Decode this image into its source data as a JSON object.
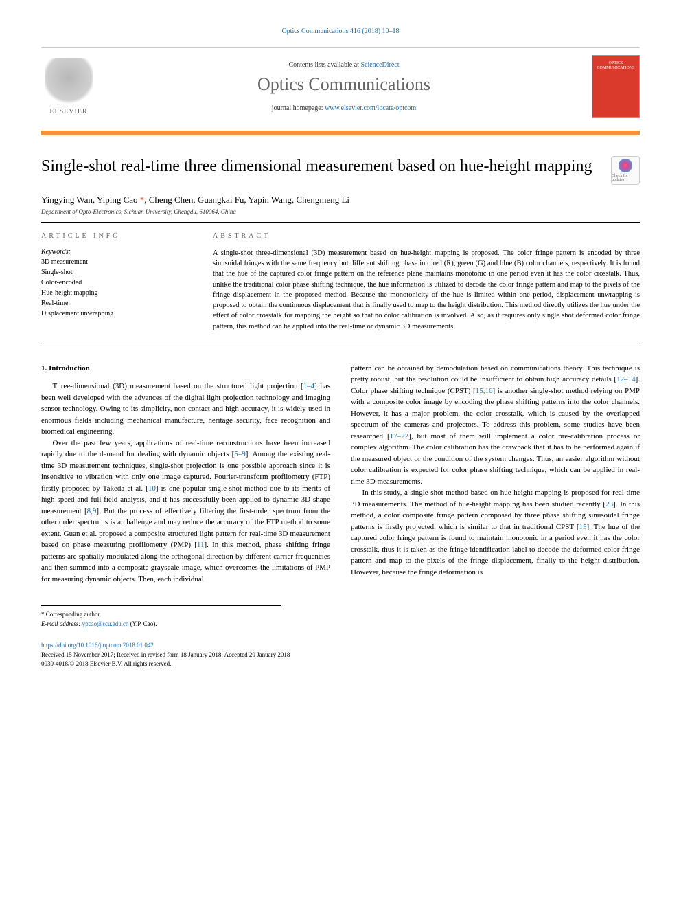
{
  "header": {
    "citation": "Optics Communications 416 (2018) 10–18",
    "contents_prefix": "Contents lists available at ",
    "contents_link": "ScienceDirect",
    "journal_name": "Optics Communications",
    "homepage_prefix": "journal homepage: ",
    "homepage_link": "www.elsevier.com/locate/optcom",
    "publisher": "ELSEVIER",
    "cover_line1": "OPTICS",
    "cover_line2": "COMMUNICATIONS"
  },
  "badge": {
    "label": "Check for updates"
  },
  "article": {
    "title": "Single-shot real-time three dimensional measurement based on hue-height mapping",
    "authors": "Yingying Wan, Yiping Cao *, Cheng Chen, Guangkai Fu, Yapin Wang, Chengmeng Li",
    "affiliation": "Department of Opto-Electronics, Sichuan University, Chengdu, 610064, China"
  },
  "labels": {
    "article_info": "ARTICLE INFO",
    "abstract": "ABSTRACT",
    "keywords": "Keywords:"
  },
  "keywords": [
    "3D measurement",
    "Single-shot",
    "Color-encoded",
    "Hue-height mapping",
    "Real-time",
    "Displacement unwrapping"
  ],
  "abstract": "A single-shot three-dimensional (3D) measurement based on hue-height mapping is proposed. The color fringe pattern is encoded by three sinusoidal fringes with the same frequency but different shifting phase into red (R), green (G) and blue (B) color channels, respectively. It is found that the hue of the captured color fringe pattern on the reference plane maintains monotonic in one period even it has the color crosstalk. Thus, unlike the traditional color phase shifting technique, the hue information is utilized to decode the color fringe pattern and map to the pixels of the fringe displacement in the proposed method. Because the monotonicity of the hue is limited within one period, displacement unwrapping is proposed to obtain the continuous displacement that is finally used to map to the height distribution. This method directly utilizes the hue under the effect of color crosstalk for mapping the height so that no color calibration is involved. Also, as it requires only single shot deformed color fringe pattern, this method can be applied into the real-time or dynamic 3D measurements.",
  "sections": {
    "intro_heading": "1. Introduction"
  },
  "body": {
    "col1_p1": "Three-dimensional (3D) measurement based on the structured light projection [1–4] has been well developed with the advances of the digital light projection technology and imaging sensor technology. Owing to its simplicity, non-contact and high accuracy, it is widely used in enormous fields including mechanical manufacture, heritage security, face recognition and biomedical engineering.",
    "col1_p2": "Over the past few years, applications of real-time reconstructions have been increased rapidly due to the demand for dealing with dynamic objects [5–9]. Among the existing real-time 3D measurement techniques, single-shot projection is one possible approach since it is insensitive to vibration with only one image captured. Fourier-transform profilometry (FTP) firstly proposed by Takeda et al. [10] is one popular single-shot method due to its merits of high speed and full-field analysis, and it has successfully been applied to dynamic 3D shape measurement [8,9]. But the process of effectively filtering the first-order spectrum from the other order spectrums is a challenge and may reduce the accuracy of the FTP method to some extent. Guan et al. proposed a composite structured light pattern for real-time 3D measurement based on phase measuring profilometry (PMP) [11]. In this method, phase shifting fringe patterns are spatially modulated along the orthogonal direction by different carrier frequencies and then summed into a composite grayscale image, which overcomes the limitations of PMP for measuring dynamic objects. Then, each individual",
    "col2_p1": "pattern can be obtained by demodulation based on communications theory. This technique is pretty robust, but the resolution could be insufficient to obtain high accuracy details [12–14]. Color phase shifting technique (CPST) [15,16] is another single-shot method relying on PMP with a composite color image by encoding the phase shifting patterns into the color channels. However, it has a major problem, the color crosstalk, which is caused by the overlapped spectrum of the cameras and projectors. To address this problem, some studies have been researched [17–22], but most of them will implement a color pre-calibration process or complex algorithm. The color calibration has the drawback that it has to be performed again if the measured object or the condition of the system changes. Thus, an easier algorithm without color calibration is expected for color phase shifting technique, which can be applied in real-time 3D measurements.",
    "col2_p2": "In this study, a single-shot method based on hue-height mapping is proposed for real-time 3D measurements. The method of hue-height mapping has been studied recently [23]. In this method, a color composite fringe pattern composed by three phase shifting sinusoidal fringe patterns is firstly projected, which is similar to that in traditional CPST [15]. The hue of the captured color fringe pattern is found to maintain monotonic in a period even it has the color crosstalk, thus it is taken as the fringe identification label to decode the deformed color fringe pattern and map to the pixels of the fringe displacement, finally to the height distribution. However, because the fringe deformation is"
  },
  "footer": {
    "corr_label": "* Corresponding author.",
    "email_label": "E-mail address: ",
    "email": "ypcao@scu.edu.cn",
    "email_name": " (Y.P. Cao).",
    "doi": "https://doi.org/10.1016/j.optcom.2018.01.042",
    "received": "Received 15 November 2017; Received in revised form 18 January 2018; Accepted 20 January 2018",
    "copyright": "0030-4018/© 2018 Elsevier B.V. All rights reserved."
  },
  "colors": {
    "link": "#1a6cb8",
    "orange_bar": "#f7923a",
    "cover_red": "#d93a2b",
    "star": "#d93a2b"
  }
}
